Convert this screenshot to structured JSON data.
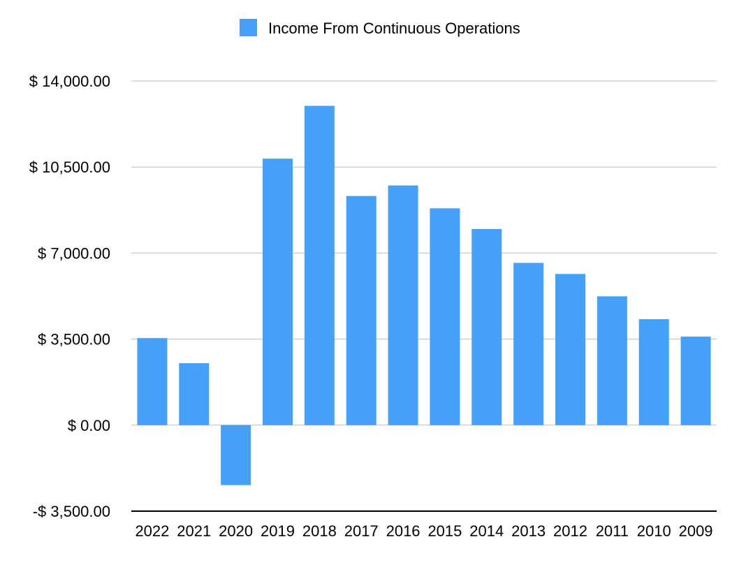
{
  "chart_data": {
    "type": "bar",
    "title": "",
    "xlabel": "",
    "ylabel": "",
    "categories": [
      "2022",
      "2021",
      "2020",
      "2019",
      "2018",
      "2017",
      "2016",
      "2015",
      "2014",
      "2013",
      "2012",
      "2011",
      "2010",
      "2009"
    ],
    "series": [
      {
        "name": "Income From Continuous Operations",
        "color": "#47a0f8",
        "values": [
          3540,
          2520,
          -2440,
          10840,
          12990,
          9320,
          9750,
          8820,
          7980,
          6600,
          6150,
          5240,
          4310,
          3600
        ]
      }
    ],
    "ylim": [
      -3500,
      14000
    ],
    "yticks": [
      -3500,
      0,
      3500,
      7000,
      10500,
      14000
    ],
    "ytick_labels": [
      "-$ 3,500.00",
      "$ 0.00",
      "$ 3,500.00",
      "$ 7,000.00",
      "$ 10,500.00",
      "$ 14,000.00"
    ],
    "grid": true,
    "legend_position": "top-center",
    "colors": {
      "bar": "#47a0f8",
      "grid": "#bdbdbd",
      "axis": "#000000"
    }
  }
}
